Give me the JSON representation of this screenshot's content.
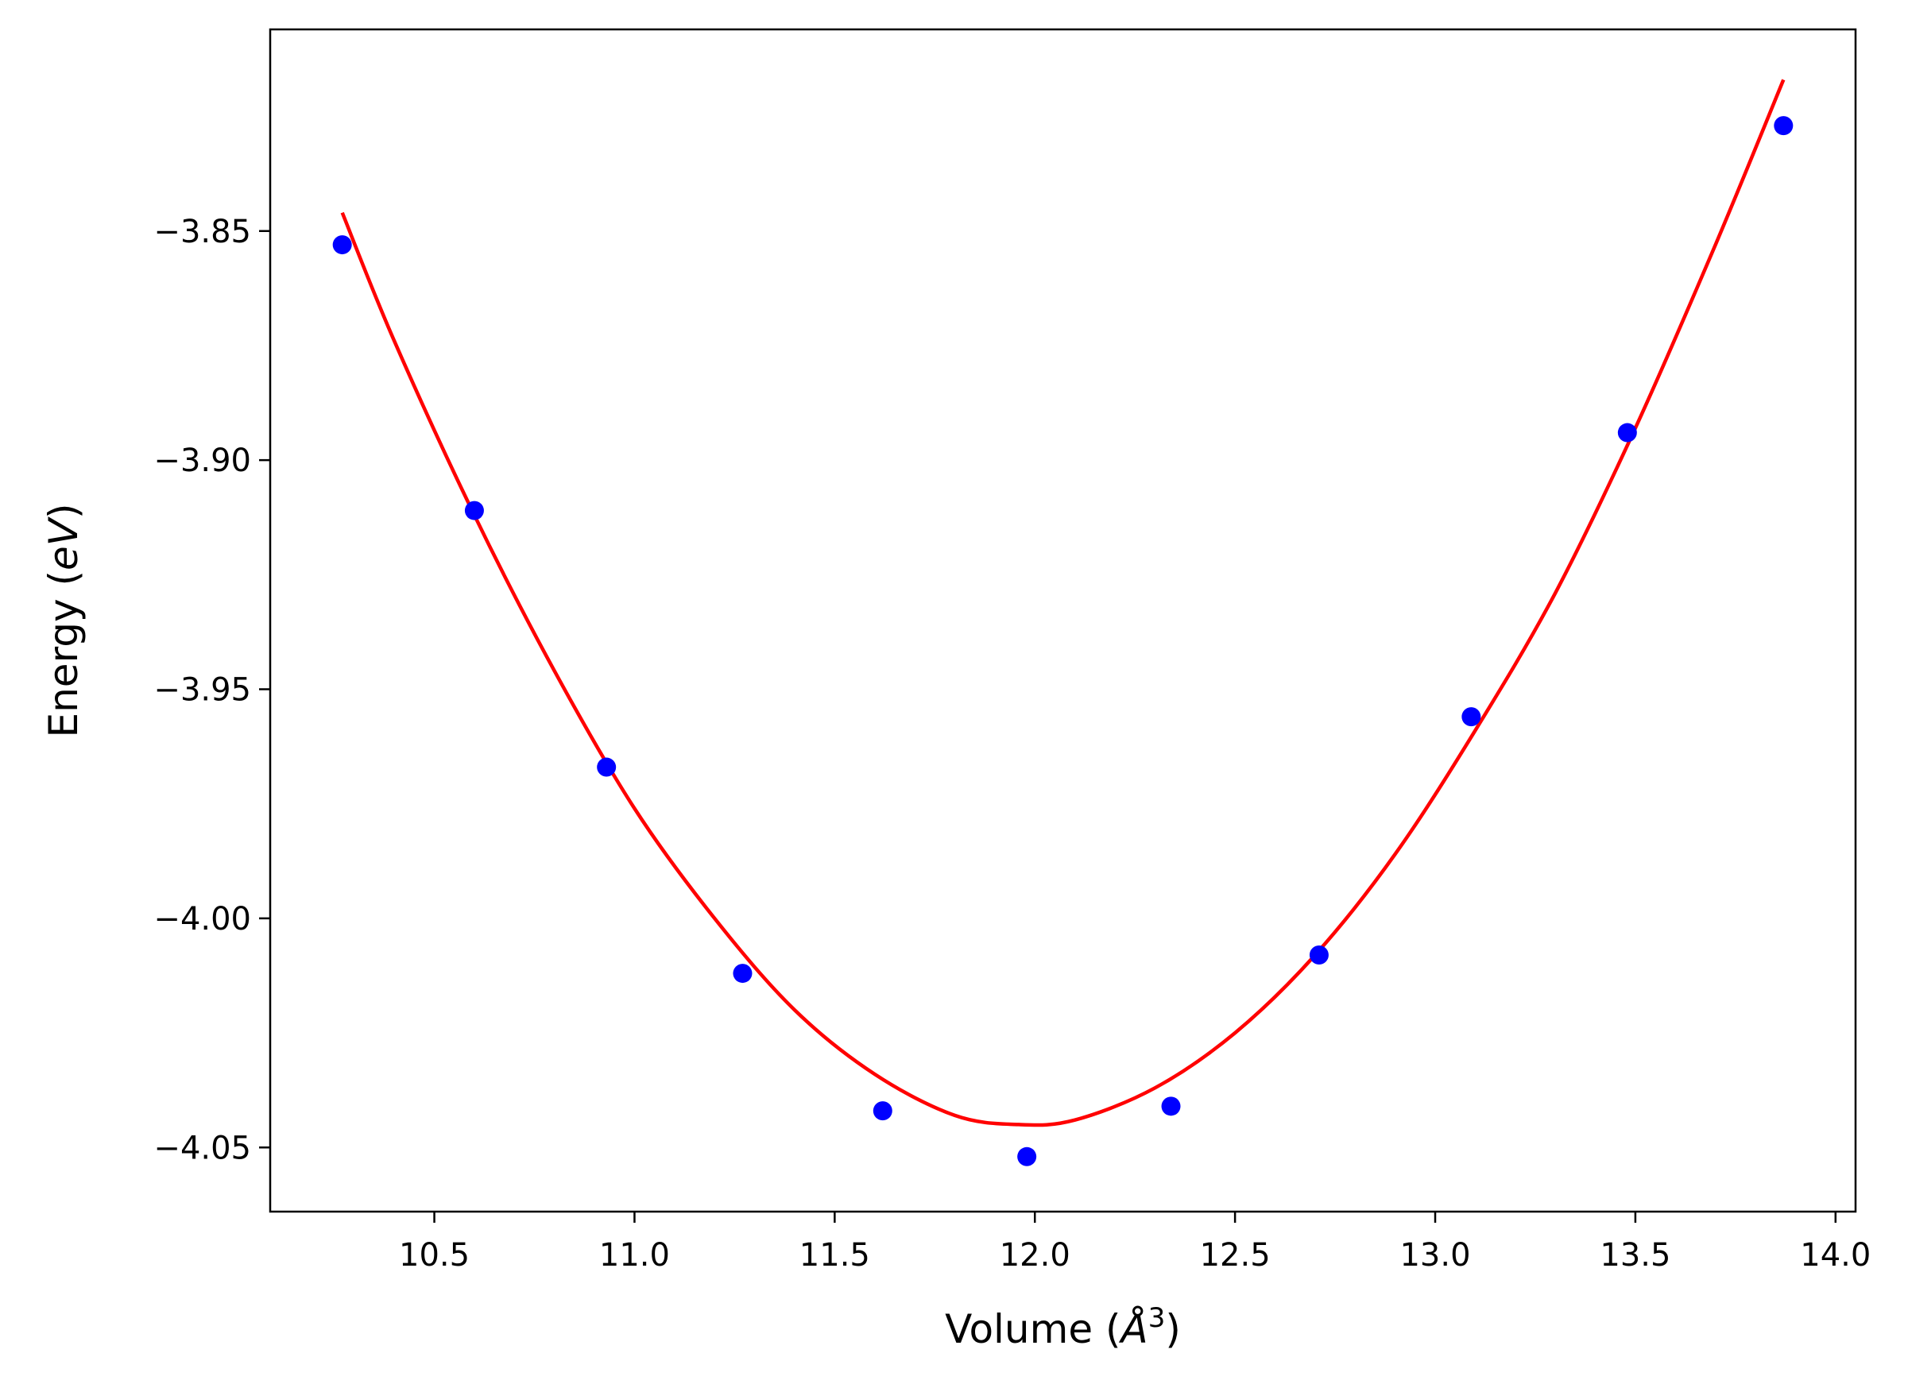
{
  "chart_data": {
    "type": "scatter",
    "title": "",
    "xlabel": {
      "prefix": "Volume (",
      "symbol": "Å",
      "superscript": "3",
      "suffix": ")"
    },
    "ylabel": {
      "prefix": "Energy (",
      "symbol": "eV",
      "suffix": ")"
    },
    "xlim": [
      10.09,
      14.05
    ],
    "ylim": [
      -4.064,
      -3.806
    ],
    "x_ticks": [
      10.5,
      11.0,
      11.5,
      12.0,
      12.5,
      13.0,
      13.5,
      14.0
    ],
    "x_tick_labels": [
      "10.5",
      "11.0",
      "11.5",
      "12.0",
      "12.5",
      "13.0",
      "13.5",
      "14.0"
    ],
    "y_ticks": [
      -3.85,
      -3.9,
      -3.95,
      -4.0,
      -4.05
    ],
    "y_tick_labels": [
      "−3.85",
      "−3.90",
      "−3.95",
      "−4.00",
      "−4.05"
    ],
    "grid": false,
    "series": [
      {
        "kind": "points",
        "color": "#0000ff",
        "x": [
          10.27,
          10.6,
          10.93,
          11.27,
          11.62,
          11.98,
          12.34,
          12.71,
          13.09,
          13.48,
          13.87
        ],
        "y": [
          -3.853,
          -3.911,
          -3.967,
          -4.012,
          -4.042,
          -4.052,
          -4.041,
          -4.008,
          -3.956,
          -3.894,
          -3.827
        ]
      },
      {
        "kind": "fit-line",
        "color": "#ff0000",
        "x": [
          10.27,
          10.4,
          10.6,
          10.8,
          11.0,
          11.2,
          11.4,
          11.6,
          11.8,
          11.96,
          12.1,
          12.3,
          12.5,
          12.7,
          12.9,
          13.1,
          13.3,
          13.5,
          13.7,
          13.87
        ],
        "y": [
          -3.846,
          -3.874,
          -3.912,
          -3.946,
          -3.976,
          -4.0,
          -4.02,
          -4.034,
          -4.043,
          -4.045,
          -4.044,
          -4.037,
          -4.025,
          -4.008,
          -3.986,
          -3.959,
          -3.929,
          -3.893,
          -3.853,
          -3.817
        ]
      }
    ]
  }
}
